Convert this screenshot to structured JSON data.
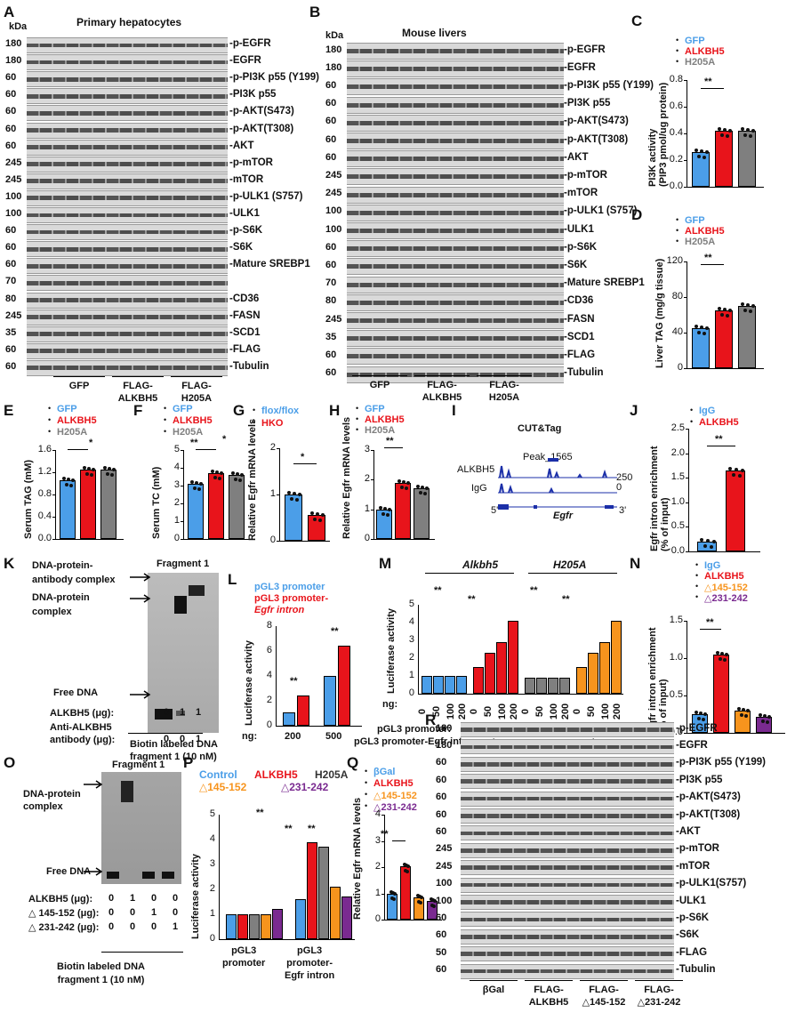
{
  "panels": {
    "A": {
      "label": "A",
      "kda": "kDa",
      "title": "Primary hepatocytes",
      "rows": [
        {
          "mw": "180",
          "name": "p-EGFR"
        },
        {
          "mw": "180",
          "name": "EGFR"
        },
        {
          "mw": "60",
          "name": "p-PI3K p55 (Y199)"
        },
        {
          "mw": "60",
          "name": "PI3K p55"
        },
        {
          "mw": "60",
          "name": "p-AKT(S473)"
        },
        {
          "mw": "60",
          "name": "p-AKT(T308)"
        },
        {
          "mw": "60",
          "name": "AKT"
        },
        {
          "mw": "245",
          "name": "p-mTOR"
        },
        {
          "mw": "245",
          "name": "mTOR"
        },
        {
          "mw": "100",
          "name": "p-ULK1 (S757)"
        },
        {
          "mw": "100",
          "name": "ULK1"
        },
        {
          "mw": "60",
          "name": "p-S6K"
        },
        {
          "mw": "60",
          "name": "S6K"
        },
        {
          "mw": "60",
          "name": "Mature SREBP1"
        },
        {
          "mw": "70",
          "name": ""
        },
        {
          "mw": "80",
          "name": "CD36"
        },
        {
          "mw": "245",
          "name": "FASN"
        },
        {
          "mw": "35",
          "name": "SCD1"
        },
        {
          "mw": "60",
          "name": "FLAG"
        },
        {
          "mw": "60",
          "name": "Tubulin"
        }
      ],
      "groups": [
        "GFP",
        "FLAG-\nALKBH5",
        "FLAG-\nH205A"
      ]
    },
    "B": {
      "label": "B",
      "kda": "kDa",
      "title": "Mouse livers",
      "rows": [
        {
          "mw": "180",
          "name": "p-EGFR"
        },
        {
          "mw": "180",
          "name": "EGFR"
        },
        {
          "mw": "60",
          "name": "p-PI3K p55 (Y199)"
        },
        {
          "mw": "60",
          "name": "PI3K p55"
        },
        {
          "mw": "60",
          "name": "p-AKT(S473)"
        },
        {
          "mw": "60",
          "name": "p-AKT(T308)"
        },
        {
          "mw": "60",
          "name": "AKT"
        },
        {
          "mw": "245",
          "name": "p-mTOR"
        },
        {
          "mw": "245",
          "name": "mTOR"
        },
        {
          "mw": "100",
          "name": "p-ULK1 (S757)"
        },
        {
          "mw": "100",
          "name": "ULK1"
        },
        {
          "mw": "60",
          "name": "p-S6K"
        },
        {
          "mw": "60",
          "name": "S6K"
        },
        {
          "mw": "70",
          "name": "Mature SREBP1"
        },
        {
          "mw": "80",
          "name": "CD36"
        },
        {
          "mw": "245",
          "name": "FASN"
        },
        {
          "mw": "35",
          "name": "SCD1"
        },
        {
          "mw": "60",
          "name": "FLAG"
        },
        {
          "mw": "60",
          "name": "Tubulin"
        }
      ],
      "groups": [
        "GFP",
        "FLAG-\nALKBH5",
        "FLAG-\nH205A"
      ]
    },
    "C": {
      "label": "C",
      "legend": [
        "GFP",
        "ALKBH5",
        "H205A"
      ],
      "ylabel": "PI3K activity",
      "ylabel2": "(PIP3 pmol/ug protein)",
      "ticks": [
        "0.0",
        "0.2",
        "0.4",
        "0.6",
        "0.8"
      ],
      "sig": "**"
    },
    "D": {
      "label": "D",
      "legend": [
        "GFP",
        "ALKBH5",
        "H205A"
      ],
      "ylabel": "Liver TAG (mg/g tissue)",
      "ticks": [
        "0",
        "40",
        "80",
        "120"
      ],
      "sig": "**"
    },
    "E": {
      "label": "E",
      "legend": [
        "GFP",
        "ALKBH5",
        "H205A"
      ],
      "ylabel": "Serum TAG (mM)",
      "ticks": [
        "0.0",
        "0.4",
        "0.8",
        "1.2",
        "1.6"
      ],
      "sig": "*"
    },
    "F": {
      "label": "F",
      "legend": [
        "GFP",
        "ALKBH5",
        "H205A"
      ],
      "ylabel": "Serum TC (mM)",
      "ticks": [
        "0",
        "1",
        "2",
        "3",
        "4",
        "5"
      ],
      "sig1": "**",
      "sig2": "*"
    },
    "G": {
      "label": "G",
      "legend": [
        "flox/flox",
        "HKO"
      ],
      "ylabel": "Relative Egfr mRNA levels",
      "ticks": [
        "0",
        "1",
        "2"
      ],
      "sig": "*"
    },
    "H": {
      "label": "H",
      "legend": [
        "GFP",
        "ALKBH5",
        "H205A"
      ],
      "ylabel": "Relative Egfr mRNA levels",
      "ticks": [
        "0",
        "1",
        "2",
        "3"
      ],
      "sig": "**"
    },
    "I": {
      "label": "I",
      "title": "CUT&Tag",
      "peak": "Peak_1565",
      "tracks": [
        "ALKBH5",
        "IgG"
      ],
      "scale": [
        "250",
        "0"
      ],
      "gene": "Egfr",
      "five": "5'",
      "three": "3'"
    },
    "J": {
      "label": "J",
      "legend": [
        "IgG",
        "ALKBH5"
      ],
      "ylabel": "Egfr intron enrichment",
      "ylabel2": "(% of input)",
      "ticks": [
        "0.0",
        "0.5",
        "1.0",
        "1.5",
        "2.0",
        "2.5"
      ],
      "sig": "**"
    },
    "K": {
      "label": "K",
      "title": "Fragment 1",
      "arrows": [
        "DNA-protein-\nantibody complex",
        "DNA-protein\ncomplex",
        "Free DNA"
      ],
      "rows": [
        {
          "name": "ALKBH5 (μg):",
          "vals": [
            "0",
            "1",
            "1"
          ]
        },
        {
          "name": "Anti-ALKBH5\nantibody (μg):",
          "vals": [
            "0",
            "0",
            "1"
          ]
        }
      ],
      "foot": "Biotin labeled DNA\nfragment 1 (10 nM)"
    },
    "L": {
      "label": "L",
      "legend": [
        "pGL3 promoter",
        "pGL3 promoter-",
        "Egfr intron"
      ],
      "ylabel": "Luciferase activity",
      "ticks": [
        "0",
        "2",
        "4",
        "6",
        "8"
      ],
      "ng": "ng:",
      "xcats": [
        "200",
        "500"
      ],
      "sig": "**"
    },
    "M": {
      "label": "M",
      "groups": [
        "Alkbh5",
        "H205A"
      ],
      "ylabel": "Luciferase activity",
      "ticks": [
        "0",
        "1",
        "2",
        "3",
        "4",
        "5"
      ],
      "ng": "ng:",
      "doses": [
        "0",
        "50",
        "100",
        "200"
      ],
      "rows": [
        {
          "name": "pGL3 promoter:",
          "vals": [
            "+",
            "-",
            "+",
            "-"
          ]
        },
        {
          "name": "pGL3 promoter-Egfr intron:",
          "vals": [
            "-",
            "+",
            "-",
            "+"
          ]
        }
      ],
      "sig": "**"
    },
    "N": {
      "label": "N",
      "legend": [
        "IgG",
        "ALKBH5",
        "△145-152",
        "△231-242"
      ],
      "ylabel": "Egfr intron enrichment",
      "ylabel2": "(% of input)",
      "ticks": [
        "0.0",
        "0.5",
        "1.0",
        "1.5"
      ],
      "sig": "**"
    },
    "O": {
      "label": "O",
      "title": "Fragment 1",
      "arrows": [
        "DNA-protein\ncomplex",
        "Free DNA"
      ],
      "rows": [
        {
          "name": "ALKBH5 (μg):",
          "vals": [
            "0",
            "1",
            "0",
            "0"
          ]
        },
        {
          "name": "△ 145-152 (μg):",
          "vals": [
            "0",
            "0",
            "1",
            "0"
          ]
        },
        {
          "name": "△ 231-242 (μg):",
          "vals": [
            "0",
            "0",
            "0",
            "1"
          ]
        }
      ],
      "foot": "Biotin labeled DNA\nfragment 1 (10 nM)"
    },
    "P": {
      "label": "P",
      "legend": [
        "Control",
        "ALKBH5",
        "H205A",
        "△145-152",
        "△231-242"
      ],
      "ylabel": "Luciferase activity",
      "ticks": [
        "0",
        "1",
        "2",
        "3",
        "4",
        "5"
      ],
      "xcats": [
        "pGL3\npromoter",
        "pGL3\npromoter-\nEgfr intron"
      ],
      "sig": "**"
    },
    "Q": {
      "label": "Q",
      "legend": [
        "βGal",
        "ALKBH5",
        "△145-152",
        "△231-242"
      ],
      "ylabel": "Relative Egfr mRNA levels",
      "ticks": [
        "0",
        "1",
        "2",
        "3",
        "4"
      ],
      "sig": "**"
    },
    "R": {
      "label": "R",
      "rows": [
        {
          "mw": "180",
          "name": "p-EGFR"
        },
        {
          "mw": "180",
          "name": "EGFR"
        },
        {
          "mw": "60",
          "name": "p-PI3K p55 (Y199)"
        },
        {
          "mw": "60",
          "name": "PI3K p55"
        },
        {
          "mw": "60",
          "name": "p-AKT(S473)"
        },
        {
          "mw": "60",
          "name": "p-AKT(T308)"
        },
        {
          "mw": "60",
          "name": "AKT"
        },
        {
          "mw": "245",
          "name": "p-mTOR"
        },
        {
          "mw": "245",
          "name": "mTOR"
        },
        {
          "mw": "100",
          "name": "p-ULK1(S757)"
        },
        {
          "mw": "100",
          "name": "ULK1"
        },
        {
          "mw": "60",
          "name": "p-S6K"
        },
        {
          "mw": "60",
          "name": "S6K"
        },
        {
          "mw": "50",
          "name": "FLAG"
        },
        {
          "mw": "60",
          "name": "Tubulin"
        }
      ],
      "groups": [
        "βGal",
        "FLAG-\nALKBH5",
        "FLAG-\n△145-152",
        "FLAG-\n△231-242"
      ]
    }
  },
  "colors": {
    "blue": "#4b9ee8",
    "red": "#e8141b",
    "gray": "#7f7f7f",
    "orange": "#f7941d",
    "purple": "#7a2a90"
  },
  "chart_data": [
    {
      "panel": "C",
      "type": "bar",
      "categories": [
        "GFP",
        "ALKBH5",
        "H205A"
      ],
      "values": [
        0.26,
        0.42,
        0.42
      ],
      "ylim": [
        0,
        0.8
      ],
      "ylabel": "PI3K activity (PIP3 pmol/ug protein)"
    },
    {
      "panel": "D",
      "type": "bar",
      "categories": [
        "GFP",
        "ALKBH5",
        "H205A"
      ],
      "values": [
        45,
        65,
        70
      ],
      "ylim": [
        0,
        120
      ],
      "ylabel": "Liver TAG (mg/g tissue)"
    },
    {
      "panel": "E",
      "type": "bar",
      "categories": [
        "GFP",
        "ALKBH5",
        "H205A"
      ],
      "values": [
        1.05,
        1.25,
        1.25
      ],
      "ylim": [
        0,
        1.6
      ],
      "ylabel": "Serum TAG (mM)"
    },
    {
      "panel": "F",
      "type": "bar",
      "categories": [
        "GFP",
        "ALKBH5",
        "H205A"
      ],
      "values": [
        3.1,
        3.7,
        3.6
      ],
      "ylim": [
        0,
        5
      ],
      "ylabel": "Serum TC (mM)"
    },
    {
      "panel": "G",
      "type": "bar",
      "categories": [
        "flox/flox",
        "HKO"
      ],
      "values": [
        1.0,
        0.55
      ],
      "ylim": [
        0,
        2
      ],
      "ylabel": "Relative Egfr mRNA levels"
    },
    {
      "panel": "H",
      "type": "bar",
      "categories": [
        "GFP",
        "ALKBH5",
        "H205A"
      ],
      "values": [
        1.0,
        1.9,
        1.7
      ],
      "ylim": [
        0,
        3
      ],
      "ylabel": "Relative Egfr mRNA levels"
    },
    {
      "panel": "J",
      "type": "bar",
      "categories": [
        "IgG",
        "ALKBH5"
      ],
      "values": [
        0.2,
        1.65
      ],
      "ylim": [
        0,
        2.5
      ],
      "ylabel": "Egfr intron enrichment (% of input)"
    },
    {
      "panel": "L",
      "type": "bar",
      "categories": [
        "200",
        "500"
      ],
      "series": [
        {
          "name": "pGL3 promoter",
          "values": [
            1.1,
            4.0
          ]
        },
        {
          "name": "pGL3 promoter-Egfr intron",
          "values": [
            2.4,
            6.4
          ]
        }
      ],
      "ylim": [
        0,
        8
      ],
      "ylabel": "Luciferase activity"
    },
    {
      "panel": "M",
      "type": "bar",
      "categories": [
        "0",
        "50",
        "100",
        "200"
      ],
      "series": [
        {
          "name": "Alkbh5 pGL3 promoter",
          "values": [
            1.0,
            1.0,
            1.0,
            1.0
          ]
        },
        {
          "name": "Alkbh5 pGL3 promoter-Egfr intron",
          "values": [
            1.5,
            2.3,
            2.9,
            4.1
          ]
        },
        {
          "name": "H205A pGL3 promoter",
          "values": [
            0.9,
            0.9,
            0.9,
            0.9
          ]
        },
        {
          "name": "H205A pGL3 promoter-Egfr intron",
          "values": [
            1.5,
            2.3,
            2.9,
            4.1
          ]
        }
      ],
      "ylim": [
        0,
        5
      ],
      "ylabel": "Luciferase activity"
    },
    {
      "panel": "N",
      "type": "bar",
      "categories": [
        "IgG",
        "ALKBH5",
        "△145-152",
        "△231-242"
      ],
      "values": [
        0.25,
        1.05,
        0.3,
        0.22
      ],
      "ylim": [
        0,
        1.5
      ],
      "ylabel": "Egfr intron enrichment (% of input)"
    },
    {
      "panel": "P",
      "type": "bar",
      "categories": [
        "pGL3 promoter",
        "pGL3 promoter-Egfr intron"
      ],
      "series": [
        {
          "name": "Control",
          "values": [
            1.0,
            1.6
          ]
        },
        {
          "name": "ALKBH5",
          "values": [
            1.0,
            3.9
          ]
        },
        {
          "name": "H205A",
          "values": [
            1.0,
            3.7
          ]
        },
        {
          "name": "△145-152",
          "values": [
            1.0,
            2.1
          ]
        },
        {
          "name": "△231-242",
          "values": [
            1.2,
            1.7
          ]
        }
      ],
      "ylim": [
        0,
        5
      ],
      "ylabel": "Luciferase activity"
    },
    {
      "panel": "Q",
      "type": "bar",
      "categories": [
        "βGal",
        "ALKBH5",
        "△145-152",
        "△231-242"
      ],
      "values": [
        1.0,
        2.05,
        0.85,
        0.7
      ],
      "ylim": [
        0,
        4
      ],
      "ylabel": "Relative Egfr mRNA levels"
    }
  ]
}
